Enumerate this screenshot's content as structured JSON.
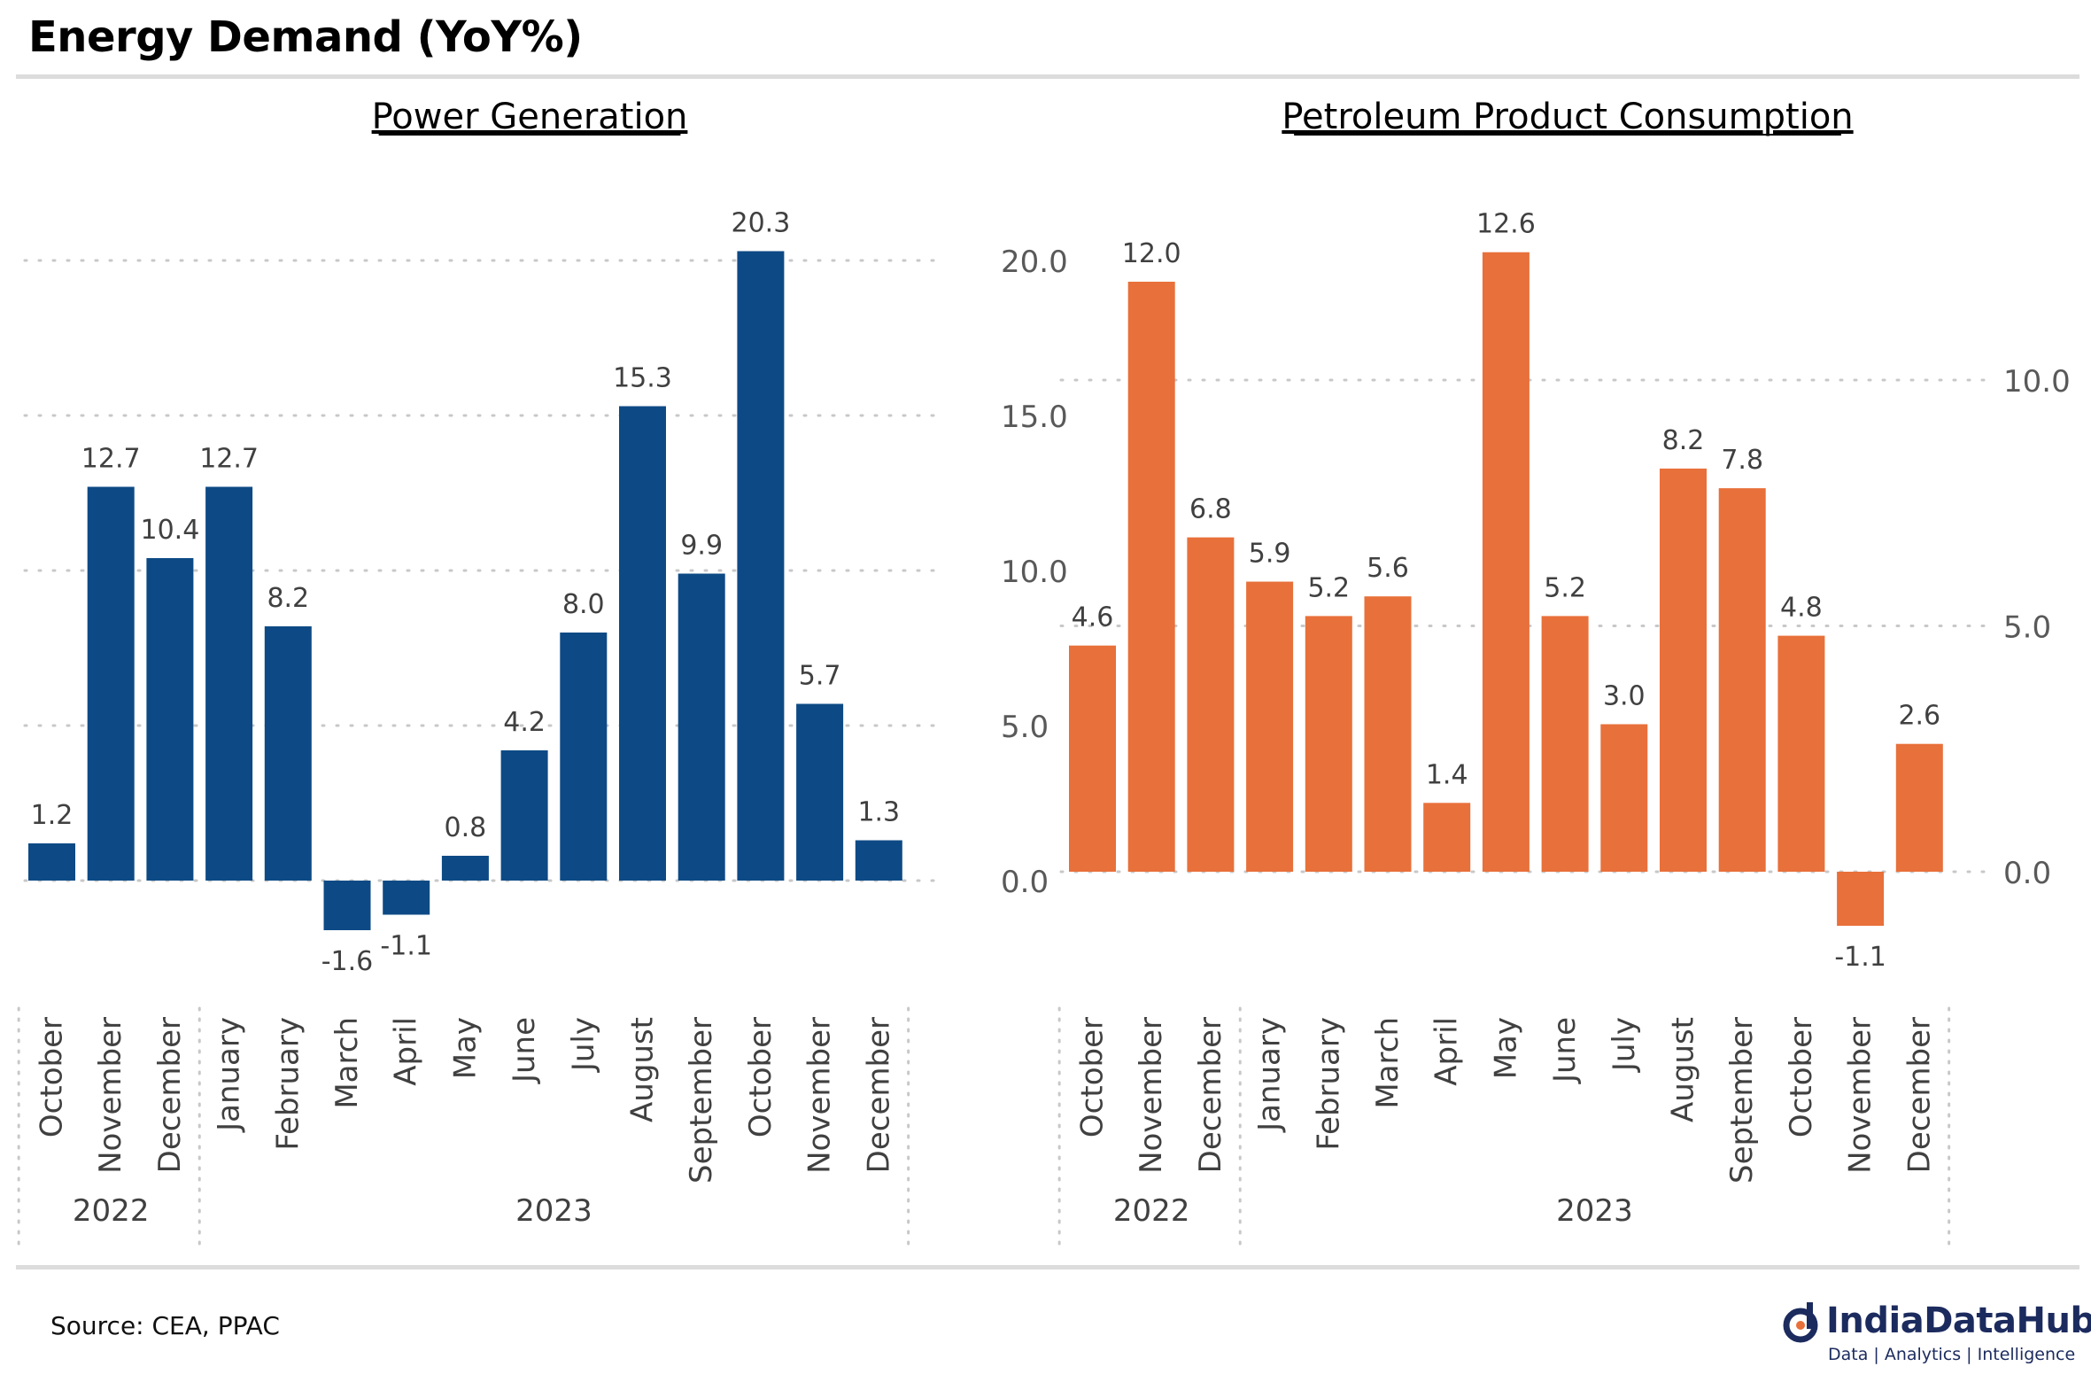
{
  "title": "Energy Demand (YoY%)",
  "source": "Source: CEA, PPAC",
  "logo": {
    "name": "IndiaDataHub",
    "tagline": "Data | Analytics | Intelligence",
    "icon": "indiadatahub-logo-icon"
  },
  "chart_data": [
    {
      "type": "bar",
      "title": "Power Generation",
      "color": "#0d4a85",
      "categories": [
        "October",
        "November",
        "December",
        "January",
        "February",
        "March",
        "April",
        "May",
        "June",
        "July",
        "August",
        "September",
        "October",
        "November",
        "December"
      ],
      "years": [
        {
          "label": "2022",
          "count": 3
        },
        {
          "label": "2023",
          "count": 12
        }
      ],
      "values": [
        1.2,
        12.7,
        10.4,
        12.7,
        8.2,
        -1.6,
        -1.1,
        0.8,
        4.2,
        8.0,
        15.3,
        9.9,
        20.3,
        5.7,
        1.3
      ],
      "value_labels": [
        "1.2",
        "12.7",
        "10.4",
        "12.7",
        "8.2",
        "-1.6",
        "-1.1",
        "0.8",
        "4.2",
        "8.0",
        "15.3",
        "9.9",
        "20.3",
        "5.7",
        "1.3"
      ],
      "yticks": [
        "0.0",
        "5.0",
        "10.0",
        "15.0",
        "20.0"
      ],
      "ytick_values": [
        0,
        5,
        10,
        15,
        20
      ],
      "ylim": [
        -3.3,
        23.0
      ],
      "y_axis_side": "right",
      "grid": true,
      "legend": "none"
    },
    {
      "type": "bar",
      "title": "Petroleum Product Consumption",
      "color": "#e8703a",
      "categories": [
        "October",
        "November",
        "December",
        "January",
        "February",
        "March",
        "April",
        "May",
        "June",
        "July",
        "August",
        "September",
        "October",
        "November",
        "December"
      ],
      "years": [
        {
          "label": "2022",
          "count": 3
        },
        {
          "label": "2023",
          "count": 12
        }
      ],
      "values": [
        4.6,
        12.0,
        6.8,
        5.9,
        5.2,
        5.6,
        1.4,
        12.6,
        5.2,
        3.0,
        8.2,
        7.8,
        4.8,
        -1.1,
        2.6
      ],
      "value_labels": [
        "4.6",
        "12.0",
        "6.8",
        "5.9",
        "5.2",
        "5.6",
        "1.4",
        "12.6",
        "5.2",
        "3.0",
        "8.2",
        "7.8",
        "4.8",
        "-1.1",
        "2.6"
      ],
      "yticks": [
        "0.0",
        "5.0",
        "10.0"
      ],
      "ytick_values": [
        0,
        5,
        10
      ],
      "ylim": [
        -2.3,
        14.6
      ],
      "y_axis_side": "right",
      "grid": true,
      "legend": "none"
    }
  ]
}
